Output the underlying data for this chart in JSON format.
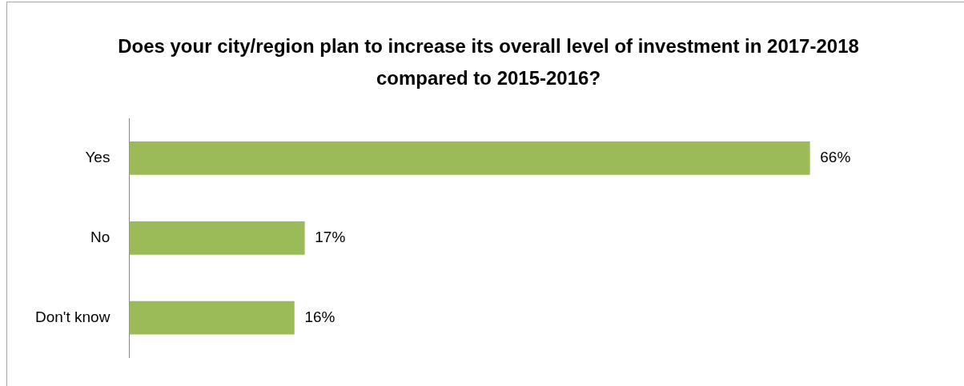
{
  "chart_data": {
    "type": "bar",
    "orientation": "horizontal",
    "title": "Does your city/region plan to increase its overall level of investment in 2017-2018 compared to 2015-2016?",
    "categories": [
      "Yes",
      "No",
      "Don't know"
    ],
    "values": [
      66,
      17,
      16
    ],
    "value_labels": [
      "66%",
      "17%",
      "16%"
    ],
    "color": "#9bbb59"
  }
}
